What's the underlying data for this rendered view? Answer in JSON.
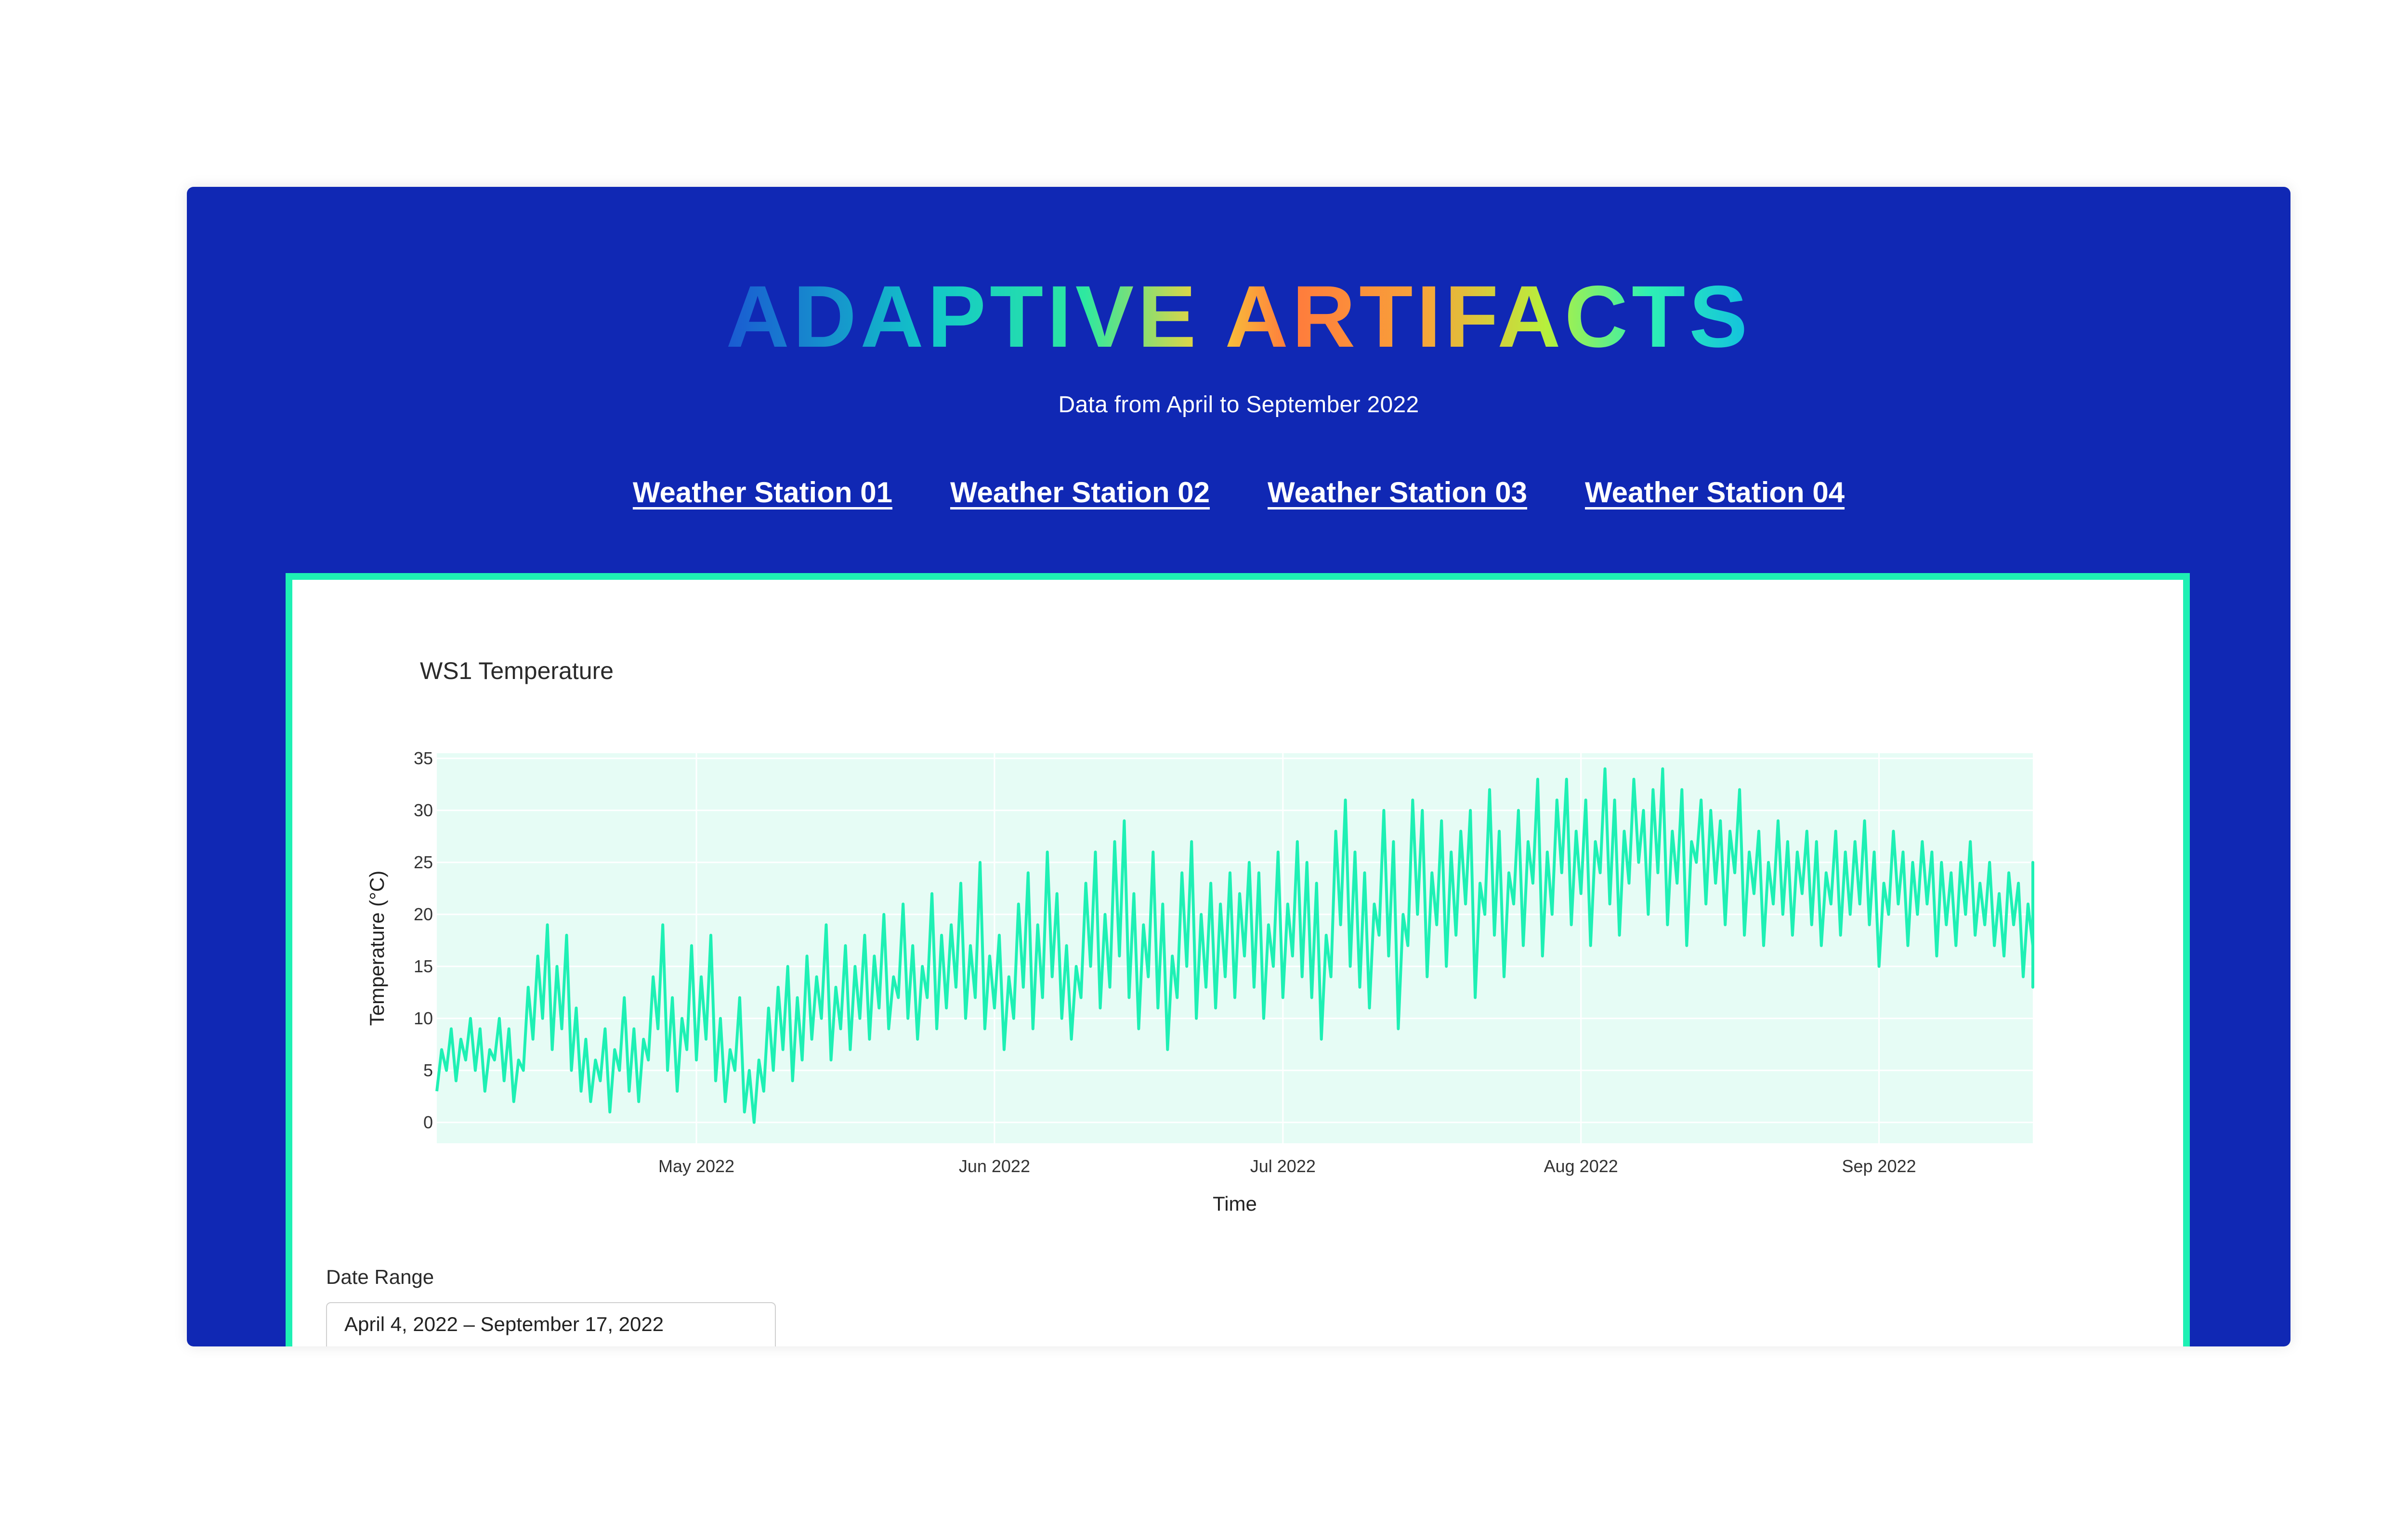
{
  "header": {
    "logo_text": "ADAPTIVE ARTIFACTS",
    "subtitle": "Data from April to September 2022"
  },
  "nav": {
    "links": [
      "Weather Station 01",
      "Weather Station 02",
      "Weather Station 03",
      "Weather Station 04"
    ]
  },
  "colors": {
    "background": "#1028b4",
    "accent": "#1ef0b4",
    "plot_background": "#e6fcf5",
    "line": "#1ef0b4"
  },
  "chart_data": {
    "type": "line",
    "title": "WS1 Temperature",
    "xlabel": "Time",
    "ylabel": "Temperature (°C)",
    "xlim": [
      "2022-04-04",
      "2022-09-17"
    ],
    "ylim": [
      -2,
      35.5
    ],
    "yticks": [
      0,
      5,
      10,
      15,
      20,
      25,
      30,
      35
    ],
    "xticks": [
      {
        "date": "2022-05-01",
        "label": "May 2022"
      },
      {
        "date": "2022-06-01",
        "label": "Jun 2022"
      },
      {
        "date": "2022-07-01",
        "label": "Jul 2022"
      },
      {
        "date": "2022-08-01",
        "label": "Aug 2022"
      },
      {
        "date": "2022-09-01",
        "label": "Sep 2022"
      }
    ],
    "grid": true,
    "series": [
      {
        "x_start": "2022-04-04",
        "x_step_hours": 12,
        "values": [
          3,
          7,
          5,
          9,
          4,
          8,
          6,
          10,
          5,
          9,
          3,
          7,
          6,
          10,
          4,
          9,
          2,
          6,
          5,
          13,
          8,
          16,
          10,
          19,
          7,
          15,
          9,
          18,
          5,
          11,
          3,
          8,
          2,
          6,
          4,
          9,
          1,
          7,
          5,
          12,
          3,
          9,
          2,
          8,
          6,
          14,
          9,
          19,
          5,
          12,
          3,
          10,
          7,
          17,
          6,
          14,
          8,
          18,
          4,
          10,
          2,
          7,
          5,
          12,
          1,
          5,
          0,
          6,
          3,
          11,
          5,
          13,
          7,
          15,
          4,
          12,
          6,
          16,
          8,
          14,
          10,
          19,
          6,
          13,
          9,
          17,
          7,
          15,
          10,
          18,
          8,
          16,
          11,
          20,
          9,
          14,
          12,
          21,
          10,
          17,
          8,
          15,
          12,
          22,
          9,
          18,
          11,
          19,
          13,
          23,
          10,
          17,
          12,
          25,
          9,
          16,
          11,
          18,
          7,
          14,
          10,
          21,
          13,
          24,
          9,
          19,
          12,
          26,
          14,
          22,
          10,
          17,
          8,
          15,
          12,
          23,
          15,
          26,
          11,
          20,
          13,
          27,
          16,
          29,
          12,
          22,
          9,
          19,
          14,
          26,
          11,
          21,
          7,
          16,
          12,
          24,
          15,
          27,
          10,
          20,
          13,
          23,
          11,
          21,
          14,
          24,
          12,
          22,
          16,
          25,
          13,
          24,
          10,
          19,
          15,
          26,
          12,
          21,
          16,
          27,
          14,
          25,
          12,
          23,
          8,
          18,
          14,
          28,
          19,
          31,
          15,
          26,
          13,
          24,
          11,
          21,
          18,
          30,
          16,
          27,
          9,
          20,
          17,
          31,
          20,
          30,
          14,
          24,
          19,
          29,
          15,
          26,
          18,
          28,
          21,
          30,
          12,
          23,
          20,
          32,
          18,
          28,
          14,
          24,
          21,
          30,
          17,
          27,
          23,
          33,
          16,
          26,
          20,
          31,
          24,
          33,
          19,
          28,
          22,
          31,
          17,
          27,
          24,
          34,
          21,
          31,
          18,
          28,
          23,
          33,
          25,
          30,
          20,
          32,
          24,
          34,
          19,
          28,
          23,
          32,
          17,
          27,
          25,
          31,
          21,
          30,
          23,
          29,
          19,
          28,
          24,
          32,
          18,
          26,
          22,
          28,
          17,
          25,
          21,
          29,
          20,
          27,
          18,
          26,
          22,
          28,
          19,
          27,
          17,
          24,
          21,
          28,
          18,
          26,
          20,
          27,
          21,
          29,
          19,
          26,
          15,
          23,
          20,
          28,
          21,
          26,
          17,
          25,
          20,
          27,
          21,
          26,
          16,
          25,
          19,
          24,
          17,
          25,
          20,
          27,
          18,
          23,
          19,
          25,
          17,
          22,
          16,
          24,
          19,
          23,
          14,
          21,
          17,
          25,
          18,
          22,
          15,
          23,
          13,
          20,
          17,
          22
        ]
      }
    ]
  },
  "controls": {
    "date_range_label": "Date Range",
    "date_range_value": "April 4, 2022 – September 17, 2022"
  }
}
